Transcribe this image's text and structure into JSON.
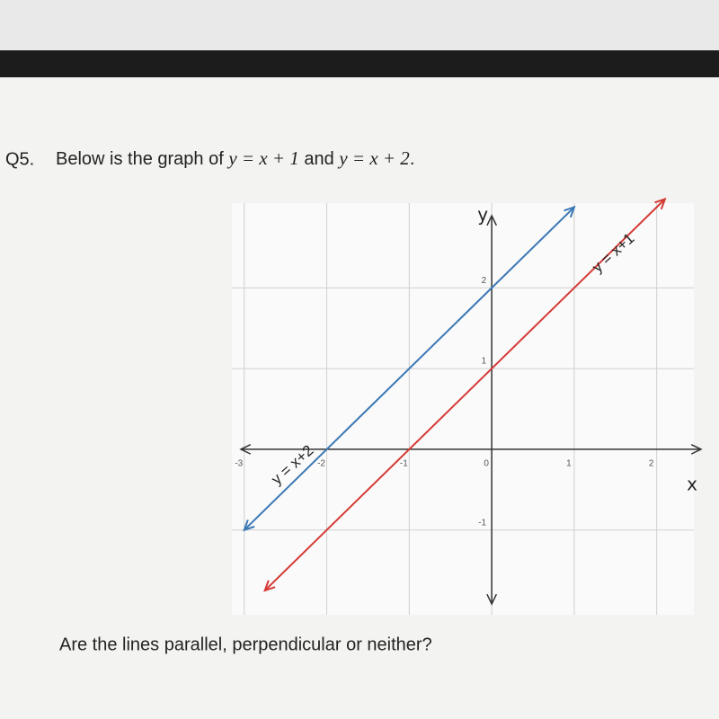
{
  "question": {
    "number": "Q5.",
    "prefix": "Below is the graph of",
    "equation_1": "y = x + 1",
    "conjunction": "and",
    "equation_2": "y = x + 2",
    "suffix": ".",
    "prompt": "Are the lines parallel, perpendicular or neither?"
  },
  "chart_data": {
    "type": "line",
    "xlabel": "x",
    "ylabel": "y",
    "xlim": [
      -3.15,
      2.45
    ],
    "ylim": [
      -2.05,
      3.05
    ],
    "xticks": [
      -3,
      -2,
      -1,
      0,
      1,
      2
    ],
    "yticks": [
      -1,
      1,
      2
    ],
    "grid": true,
    "series": [
      {
        "name": "y = x+2",
        "color": "#3b78b5",
        "x": [
          -3,
          1
        ],
        "values": [
          -1,
          3
        ]
      },
      {
        "name": "y = x+1",
        "color": "#d43a35",
        "x": [
          -2.75,
          2.1
        ],
        "values": [
          -1.75,
          3.1
        ]
      }
    ]
  }
}
